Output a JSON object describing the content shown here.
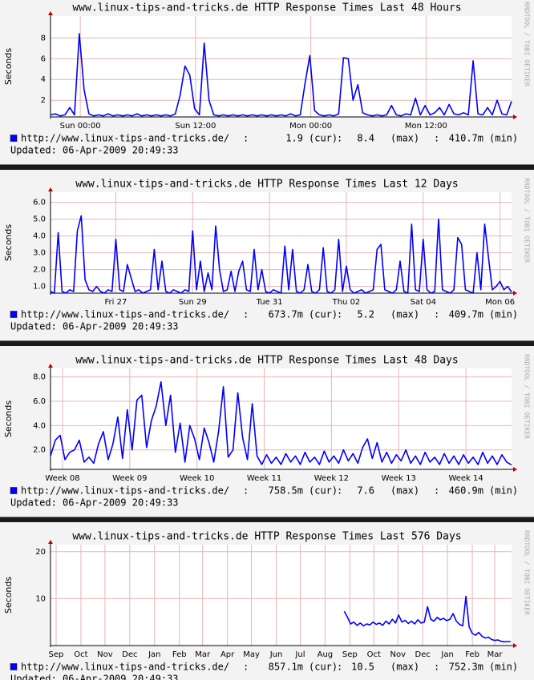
{
  "chart_data": [
    {
      "type": "line",
      "title": "www.linux-tips-and-tricks.de HTTP Response Times Last 48 Hours",
      "y_label": "Seconds",
      "watermark": "RRDTOOL / TOBI OETIKER",
      "grid": true,
      "grid_color": "#e9b4b4",
      "xlim": [
        0,
        48
      ],
      "xticks": [
        {
          "value": 3.1,
          "label": "Sun 00:00"
        },
        {
          "value": 15.1,
          "label": "Sun 12:00"
        },
        {
          "value": 27.1,
          "label": "Mon 00:00"
        },
        {
          "value": 39.1,
          "label": "Mon 12:00"
        }
      ],
      "ylim": [
        0.4,
        10.1
      ],
      "yticks": [
        2,
        4,
        6,
        8
      ],
      "series": [
        {
          "name": "http://www.linux-tips-and-tricks.de/",
          "color": "#0000ff",
          "values": [
            0.6,
            0.7,
            0.5,
            0.6,
            1.3,
            0.6,
            8.4,
            3.0,
            0.7,
            0.5,
            0.6,
            0.5,
            0.7,
            0.5,
            0.6,
            0.5,
            0.6,
            0.5,
            0.7,
            0.5,
            0.6,
            0.5,
            0.6,
            0.5,
            0.6,
            0.5,
            0.7,
            2.5,
            5.3,
            4.4,
            1.2,
            0.6,
            7.5,
            2.0,
            0.6,
            0.5,
            0.6,
            0.5,
            0.6,
            0.5,
            0.6,
            0.5,
            0.6,
            0.5,
            0.6,
            0.5,
            0.6,
            0.5,
            0.6,
            0.5,
            0.7,
            0.5,
            0.6,
            3.6,
            6.3,
            1.0,
            0.6,
            0.5,
            0.6,
            0.5,
            0.7,
            6.1,
            6.0,
            2.0,
            3.5,
            0.8,
            0.6,
            0.5,
            0.6,
            0.5,
            0.6,
            1.5,
            0.6,
            0.5,
            0.7,
            0.6,
            2.2,
            0.6,
            1.5,
            0.6,
            0.8,
            1.3,
            0.6,
            1.6,
            0.7,
            0.6,
            0.8,
            0.6,
            5.8,
            0.7,
            0.6,
            1.3,
            0.6,
            2.0,
            0.7,
            0.6,
            1.9
          ]
        }
      ],
      "separator": ":",
      "stats": [
        {
          "value": "1.9",
          "label": "(cur)"
        },
        {
          "value": "8.4",
          "label": "(max)"
        },
        {
          "value": "410.7m",
          "label": "(min)"
        }
      ],
      "updated": "Updated: 06-Apr-2009 20:49:33"
    },
    {
      "type": "line",
      "title": "www.linux-tips-and-tricks.de HTTP Response Times Last 12 Days",
      "y_label": "Seconds",
      "watermark": "RRDTOOL / TOBI OETIKER",
      "grid": true,
      "grid_color": "#e9b4b4",
      "xlim": [
        0,
        12
      ],
      "xticks": [
        {
          "value": 1.7,
          "label": "Fri 27"
        },
        {
          "value": 3.7,
          "label": "Sun 29"
        },
        {
          "value": 5.7,
          "label": "Tue 31"
        },
        {
          "value": 7.7,
          "label": "Thu 02"
        },
        {
          "value": 9.7,
          "label": "Sat 04"
        },
        {
          "value": 11.7,
          "label": "Mon 06"
        }
      ],
      "ylim": [
        0.6,
        6.6
      ],
      "yticks": [
        {
          "value": 1,
          "label": "1.0"
        },
        {
          "value": 2,
          "label": "2.0"
        },
        {
          "value": 3,
          "label": "3.0"
        },
        {
          "value": 4,
          "label": "4.0"
        },
        {
          "value": 5,
          "label": "5.0"
        },
        {
          "value": 6,
          "label": "6.0"
        }
      ],
      "series": [
        {
          "name": "http://www.linux-tips-and-tricks.de/",
          "color": "#0000ff",
          "values": [
            0.7,
            0.6,
            4.2,
            0.7,
            0.6,
            0.8,
            0.7,
            4.3,
            5.2,
            1.4,
            0.8,
            0.7,
            1.0,
            0.7,
            0.6,
            0.8,
            0.7,
            3.8,
            0.8,
            0.7,
            2.3,
            1.5,
            0.7,
            0.8,
            0.6,
            0.7,
            0.8,
            3.2,
            0.8,
            2.5,
            0.7,
            0.6,
            0.8,
            0.7,
            0.6,
            0.8,
            0.7,
            4.3,
            0.8,
            2.5,
            0.7,
            1.8,
            0.8,
            4.6,
            2.0,
            0.7,
            0.8,
            1.9,
            0.7,
            1.9,
            2.5,
            0.8,
            0.7,
            3.2,
            0.8,
            2.0,
            0.7,
            0.6,
            0.8,
            0.7,
            0.6,
            3.4,
            0.8,
            3.2,
            0.7,
            0.6,
            0.8,
            2.3,
            0.7,
            0.6,
            0.8,
            3.3,
            0.7,
            0.6,
            0.8,
            3.8,
            0.7,
            2.2,
            0.8,
            0.6,
            0.7,
            0.8,
            0.6,
            0.7,
            0.8,
            3.2,
            3.5,
            0.8,
            0.7,
            0.6,
            0.8,
            2.5,
            0.7,
            0.6,
            4.7,
            0.8,
            0.7,
            3.8,
            0.8,
            0.6,
            0.7,
            5.0,
            0.8,
            0.7,
            0.6,
            0.8,
            3.9,
            3.5,
            0.8,
            0.7,
            0.6,
            3.0,
            0.8,
            4.7,
            2.7,
            0.8,
            1.0,
            1.3,
            0.8,
            1.0,
            0.67
          ]
        }
      ],
      "separator": ":",
      "stats": [
        {
          "value": "673.7m",
          "label": "(cur)"
        },
        {
          "value": "5.2",
          "label": "(max)"
        },
        {
          "value": "409.7m",
          "label": "(min)"
        }
      ],
      "updated": "Updated: 06-Apr-2009 20:49:33"
    },
    {
      "type": "line",
      "title": "www.linux-tips-and-tricks.de HTTP Response Times Last 48 Days",
      "y_label": "Seconds",
      "watermark": "RRDTOOL / TOBI OETIKER",
      "grid": true,
      "grid_color": "#e9b4b4",
      "xlim": [
        0,
        48
      ],
      "xticks": [
        {
          "value": 1.25,
          "label": "Week 08"
        },
        {
          "value": 8.25,
          "label": "Week 09"
        },
        {
          "value": 15.25,
          "label": "Week 10"
        },
        {
          "value": 22.25,
          "label": "Week 11"
        },
        {
          "value": 29.25,
          "label": "Week 12"
        },
        {
          "value": 36.25,
          "label": "Week 13"
        },
        {
          "value": 43.25,
          "label": "Week 14"
        }
      ],
      "ylim": [
        0.4,
        8.7
      ],
      "yticks": [
        {
          "value": 2,
          "label": "2.0"
        },
        {
          "value": 4,
          "label": "4.0"
        },
        {
          "value": 6,
          "label": "6.0"
        },
        {
          "value": 8,
          "label": "8.0"
        }
      ],
      "series": [
        {
          "name": "http://www.linux-tips-and-tricks.de/",
          "color": "#0000ff",
          "values": [
            1.5,
            2.8,
            3.2,
            1.2,
            1.8,
            2.0,
            2.8,
            1.0,
            1.4,
            0.9,
            2.5,
            3.5,
            1.2,
            2.5,
            4.7,
            1.3,
            5.3,
            2.0,
            6.1,
            6.5,
            2.2,
            4.4,
            5.6,
            7.6,
            4.0,
            6.5,
            1.8,
            4.2,
            1.0,
            4.0,
            2.9,
            1.2,
            3.8,
            2.6,
            1.0,
            3.5,
            7.2,
            1.4,
            2.0,
            6.7,
            3.0,
            1.2,
            5.8,
            1.5,
            0.8,
            1.6,
            0.9,
            1.4,
            0.8,
            1.7,
            1.0,
            1.5,
            0.8,
            1.8,
            1.0,
            1.4,
            0.8,
            1.9,
            1.0,
            1.5,
            0.9,
            2.0,
            1.1,
            1.7,
            0.9,
            2.2,
            2.9,
            1.3,
            2.6,
            1.0,
            1.8,
            0.9,
            1.6,
            1.1,
            2.0,
            0.9,
            1.5,
            0.8,
            1.8,
            1.0,
            1.4,
            0.8,
            1.7,
            0.9,
            1.5,
            0.8,
            1.6,
            0.9,
            1.4,
            0.8,
            1.8,
            0.9,
            1.5,
            0.8,
            1.6,
            1.0,
            0.76
          ]
        }
      ],
      "separator": ":",
      "stats": [
        {
          "value": "758.5m",
          "label": "(cur)"
        },
        {
          "value": "7.6",
          "label": "(max)"
        },
        {
          "value": "460.9m",
          "label": "(min)"
        }
      ],
      "updated": "Updated: 06-Apr-2009 20:49:33"
    },
    {
      "type": "line",
      "title": "www.linux-tips-and-tricks.de HTTP Response Times Last 576 Days",
      "y_label": "Seconds",
      "watermark": "RRDTOOL / TOBI OETIKER",
      "grid": true,
      "grid_color": "#e9b4b4",
      "xlim": [
        0,
        576
      ],
      "xticks": [
        {
          "value": 7,
          "label": "Sep"
        },
        {
          "value": 38,
          "label": "Oct"
        },
        {
          "value": 68,
          "label": "Nov"
        },
        {
          "value": 99,
          "label": "Dec"
        },
        {
          "value": 130,
          "label": "Jan"
        },
        {
          "value": 161,
          "label": "Feb"
        },
        {
          "value": 190,
          "label": "Mar"
        },
        {
          "value": 221,
          "label": "Apr"
        },
        {
          "value": 251,
          "label": "May"
        },
        {
          "value": 282,
          "label": "Jun"
        },
        {
          "value": 312,
          "label": "Jul"
        },
        {
          "value": 343,
          "label": "Aug"
        },
        {
          "value": 374,
          "label": "Sep"
        },
        {
          "value": 404,
          "label": "Oct"
        },
        {
          "value": 434,
          "label": "Nov"
        },
        {
          "value": 465,
          "label": "Dec"
        },
        {
          "value": 496,
          "label": "Jan"
        },
        {
          "value": 527,
          "label": "Feb"
        },
        {
          "value": 555,
          "label": "Mar"
        }
      ],
      "ylim": [
        0,
        21.5
      ],
      "yticks": [
        10,
        20
      ],
      "series": [
        {
          "name": "http://www.linux-tips-and-tricks.de/",
          "color": "#0000ff",
          "x": [
            367,
            371,
            375,
            379,
            383,
            387,
            391,
            395,
            399,
            403,
            407,
            411,
            415,
            419,
            423,
            427,
            431,
            435,
            439,
            443,
            447,
            451,
            455,
            459,
            463,
            467,
            471,
            475,
            479,
            483,
            487,
            491,
            495,
            499,
            503,
            507,
            511,
            515,
            519,
            523,
            527,
            531,
            535,
            539,
            543,
            547,
            551,
            555,
            559,
            563,
            567,
            571,
            575
          ],
          "values": [
            7.3,
            6.0,
            4.6,
            5.0,
            4.3,
            4.8,
            4.2,
            4.6,
            4.4,
            5.0,
            4.5,
            4.8,
            4.3,
            5.2,
            4.6,
            5.6,
            4.8,
            6.5,
            5.0,
            5.4,
            4.7,
            5.2,
            4.6,
            5.5,
            4.8,
            5.0,
            8.3,
            5.6,
            5.2,
            6.0,
            5.5,
            5.8,
            5.3,
            5.6,
            6.8,
            5.2,
            4.5,
            4.2,
            10.5,
            4.0,
            2.6,
            2.2,
            2.8,
            2.0,
            1.6,
            1.8,
            1.3,
            1.1,
            1.2,
            0.9,
            0.8,
            0.85,
            0.857
          ]
        }
      ],
      "separator": ":",
      "stats": [
        {
          "value": "857.1m",
          "label": "(cur)"
        },
        {
          "value": "10.5",
          "label": "(max)"
        },
        {
          "value": "752.3m",
          "label": "(min)"
        }
      ],
      "updated": "Updated: 06-Apr-2009 20:49:33"
    }
  ]
}
